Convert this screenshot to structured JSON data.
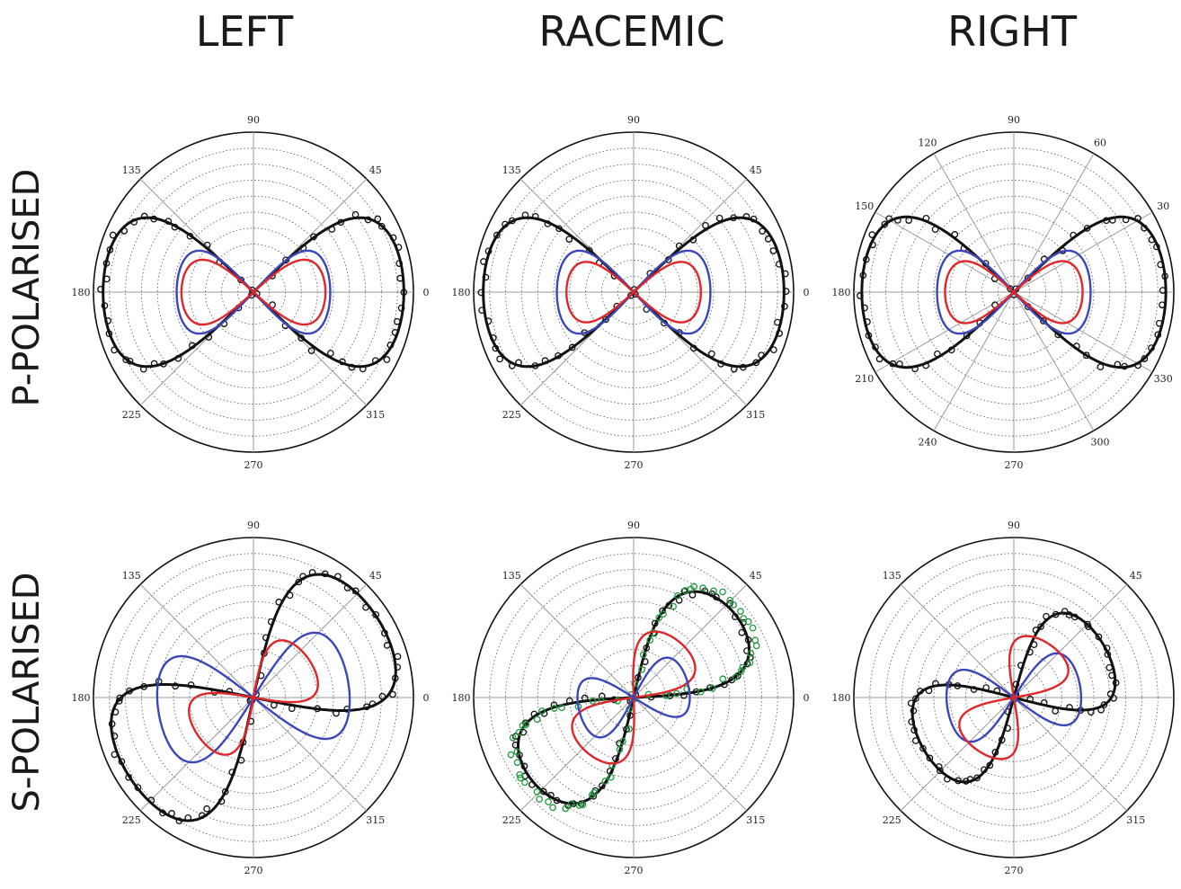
{
  "columns": [
    "LEFT",
    "RACEMIC",
    "RIGHT"
  ],
  "rows": [
    "P-POLARISED",
    "S-POLARISED"
  ],
  "colors": {
    "fit": "#111111",
    "red": "#e0262a",
    "blue": "#3b47b8",
    "green": "#1e9a3b",
    "grid": "#9a9a9a"
  },
  "chart_data": [
    {
      "type": "polar",
      "column": "LEFT",
      "row": "P-POLARISED",
      "theta_ticks": [
        "90",
        "45",
        "0",
        "315",
        "270",
        "225",
        "180",
        "135"
      ],
      "theta_tick_angles": [
        90,
        45,
        0,
        315,
        270,
        225,
        180,
        135
      ],
      "radial_rings": 10,
      "grid": true,
      "series": [
        {
          "color": "black",
          "style": "line+markers",
          "shape": "figure-eight",
          "peak_angle_deg": 0,
          "peak_r": 0.94,
          "width_ratio": 0.55
        },
        {
          "color": "blue",
          "style": "line",
          "shape": "figure-eight",
          "peak_angle_deg": 0,
          "peak_r": 0.48,
          "width_ratio": 0.6
        },
        {
          "color": "red",
          "style": "line",
          "shape": "figure-eight",
          "peak_angle_deg": 0,
          "peak_r": 0.45,
          "width_ratio": 0.5
        }
      ]
    },
    {
      "type": "polar",
      "column": "RACEMIC",
      "row": "P-POLARISED",
      "theta_ticks": [
        "90",
        "45",
        "0",
        "315",
        "270",
        "225",
        "180",
        "135"
      ],
      "theta_tick_angles": [
        90,
        45,
        0,
        315,
        270,
        225,
        180,
        135
      ],
      "radial_rings": 10,
      "grid": true,
      "series": [
        {
          "color": "black",
          "style": "line+markers",
          "shape": "figure-eight",
          "peak_angle_deg": 0,
          "peak_r": 0.94,
          "width_ratio": 0.55
        },
        {
          "color": "blue",
          "style": "line",
          "shape": "figure-eight",
          "peak_angle_deg": 0,
          "peak_r": 0.48,
          "width_ratio": 0.6
        },
        {
          "color": "red",
          "style": "line",
          "shape": "figure-eight",
          "peak_angle_deg": 0,
          "peak_r": 0.42,
          "width_ratio": 0.5
        }
      ]
    },
    {
      "type": "polar",
      "column": "RIGHT",
      "row": "P-POLARISED",
      "theta_ticks": [
        "90",
        "60",
        "30",
        "0",
        "330",
        "300",
        "270",
        "240",
        "210",
        "180",
        "150",
        "120"
      ],
      "theta_tick_angles": [
        90,
        60,
        30,
        0,
        330,
        300,
        270,
        240,
        210,
        180,
        150,
        120
      ],
      "radial_rings": 10,
      "grid": true,
      "series": [
        {
          "color": "black",
          "style": "line+markers",
          "shape": "figure-eight",
          "peak_angle_deg": 0,
          "peak_r": 0.95,
          "width_ratio": 0.55
        },
        {
          "color": "blue",
          "style": "line",
          "shape": "figure-eight",
          "peak_angle_deg": 0,
          "peak_r": 0.48,
          "width_ratio": 0.6
        },
        {
          "color": "red",
          "style": "line",
          "shape": "figure-eight",
          "peak_angle_deg": 0,
          "peak_r": 0.43,
          "width_ratio": 0.5
        }
      ]
    },
    {
      "type": "polar",
      "column": "LEFT",
      "row": "S-POLARISED",
      "theta_ticks": [
        "90",
        "45",
        "0",
        "315",
        "270",
        "225",
        "180",
        "135"
      ],
      "theta_tick_angles": [
        90,
        45,
        0,
        315,
        270,
        225,
        180,
        135
      ],
      "radial_rings": 10,
      "grid": true,
      "series": [
        {
          "color": "black",
          "style": "line+markers",
          "shape": "figure-eight",
          "peak_angle_deg": 33,
          "peak_r": 0.92,
          "width_ratio": 0.55
        },
        {
          "color": "blue",
          "style": "line",
          "shape": "figure-eight",
          "peak_angle_deg": 10,
          "peak_r": 0.6,
          "width_ratio": 0.62
        },
        {
          "color": "red",
          "style": "line",
          "shape": "figure-eight",
          "peak_angle_deg": 35,
          "peak_r": 0.42,
          "width_ratio": 0.55
        }
      ]
    },
    {
      "type": "polar",
      "column": "RACEMIC",
      "row": "S-POLARISED",
      "theta_ticks": [
        "90",
        "45",
        "0",
        "315",
        "270",
        "225",
        "180",
        "135"
      ],
      "theta_tick_angles": [
        90,
        45,
        0,
        315,
        270,
        225,
        180,
        135
      ],
      "radial_rings": 10,
      "grid": true,
      "series": [
        {
          "color": "black",
          "style": "line+markers",
          "shape": "figure-eight",
          "peak_angle_deg": 40,
          "peak_r": 0.82,
          "width_ratio": 0.42
        },
        {
          "color": "green",
          "style": "markers",
          "shape": "figure-eight",
          "peak_angle_deg": 40,
          "peak_r": 0.86,
          "width_ratio": 0.4
        },
        {
          "color": "red",
          "style": "line",
          "shape": "figure-eight",
          "peak_angle_deg": 50,
          "peak_r": 0.45,
          "width_ratio": 0.5
        },
        {
          "color": "blue",
          "style": "line",
          "shape": "figure-eight",
          "peak_angle_deg": 15,
          "peak_r": 0.35,
          "width_ratio": 0.6
        }
      ]
    },
    {
      "type": "polar",
      "column": "RIGHT",
      "row": "S-POLARISED",
      "theta_ticks": [
        "90",
        "45",
        "0",
        "315",
        "270",
        "225",
        "180",
        "135"
      ],
      "theta_tick_angles": [
        90,
        45,
        0,
        315,
        270,
        225,
        180,
        135
      ],
      "radial_rings": 10,
      "grid": true,
      "series": [
        {
          "color": "black",
          "style": "line+markers",
          "shape": "figure-eight",
          "peak_angle_deg": 30,
          "peak_r": 0.65,
          "width_ratio": 0.55
        },
        {
          "color": "blue",
          "style": "line",
          "shape": "figure-eight",
          "peak_angle_deg": 10,
          "peak_r": 0.42,
          "width_ratio": 0.6
        },
        {
          "color": "red",
          "style": "line",
          "shape": "figure-eight",
          "peak_angle_deg": 55,
          "peak_r": 0.4,
          "width_ratio": 0.55
        }
      ]
    }
  ]
}
